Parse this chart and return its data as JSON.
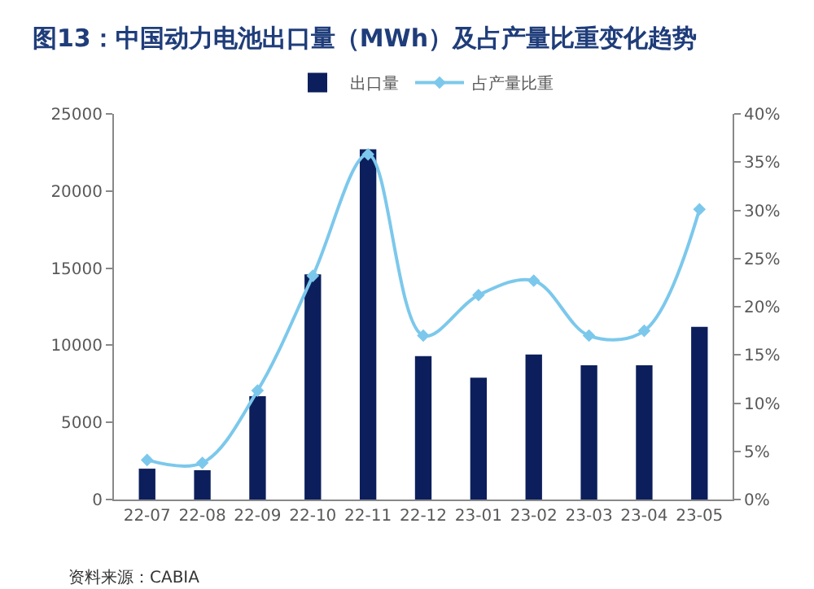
{
  "chart_data": {
    "type": "bar",
    "title": "图13：中国动力电池出口量（MWh）及占产量比重变化趋势",
    "categories": [
      "22-07",
      "22-08",
      "22-09",
      "22-10",
      "22-11",
      "22-12",
      "23-01",
      "23-02",
      "23-03",
      "23-04",
      "23-05"
    ],
    "series": [
      {
        "name": "出口量",
        "color": "#0c1f5c",
        "values": [
          2000,
          1900,
          6700,
          14600,
          22700,
          9300,
          7900,
          9400,
          8700,
          8700,
          11200
        ]
      },
      {
        "name": "占产量比重",
        "type": "line",
        "axis": "y2",
        "color": "#7cc8ec",
        "marker": "diamond",
        "values": [
          4.1,
          3.8,
          11.3,
          23.2,
          35.8,
          17.0,
          21.2,
          22.7,
          17.0,
          17.5,
          30.1
        ]
      }
    ],
    "ylim": [
      0,
      25000
    ],
    "yticks": [
      0,
      5000,
      10000,
      15000,
      20000,
      25000
    ],
    "y2lim": [
      0,
      40
    ],
    "y2ticks": [
      {
        "value": 0,
        "label": "0%"
      },
      {
        "value": 5,
        "label": "5%"
      },
      {
        "value": 10,
        "label": "10%"
      },
      {
        "value": 15,
        "label": "15%"
      },
      {
        "value": 20,
        "label": "20%"
      },
      {
        "value": 25,
        "label": "25%"
      },
      {
        "value": 30,
        "label": "30%"
      },
      {
        "value": 35,
        "label": "35%"
      },
      {
        "value": 40,
        "label": "40%"
      }
    ],
    "grid": false,
    "legend": "top",
    "annotations": [
      "资料来源：CABIA"
    ]
  }
}
